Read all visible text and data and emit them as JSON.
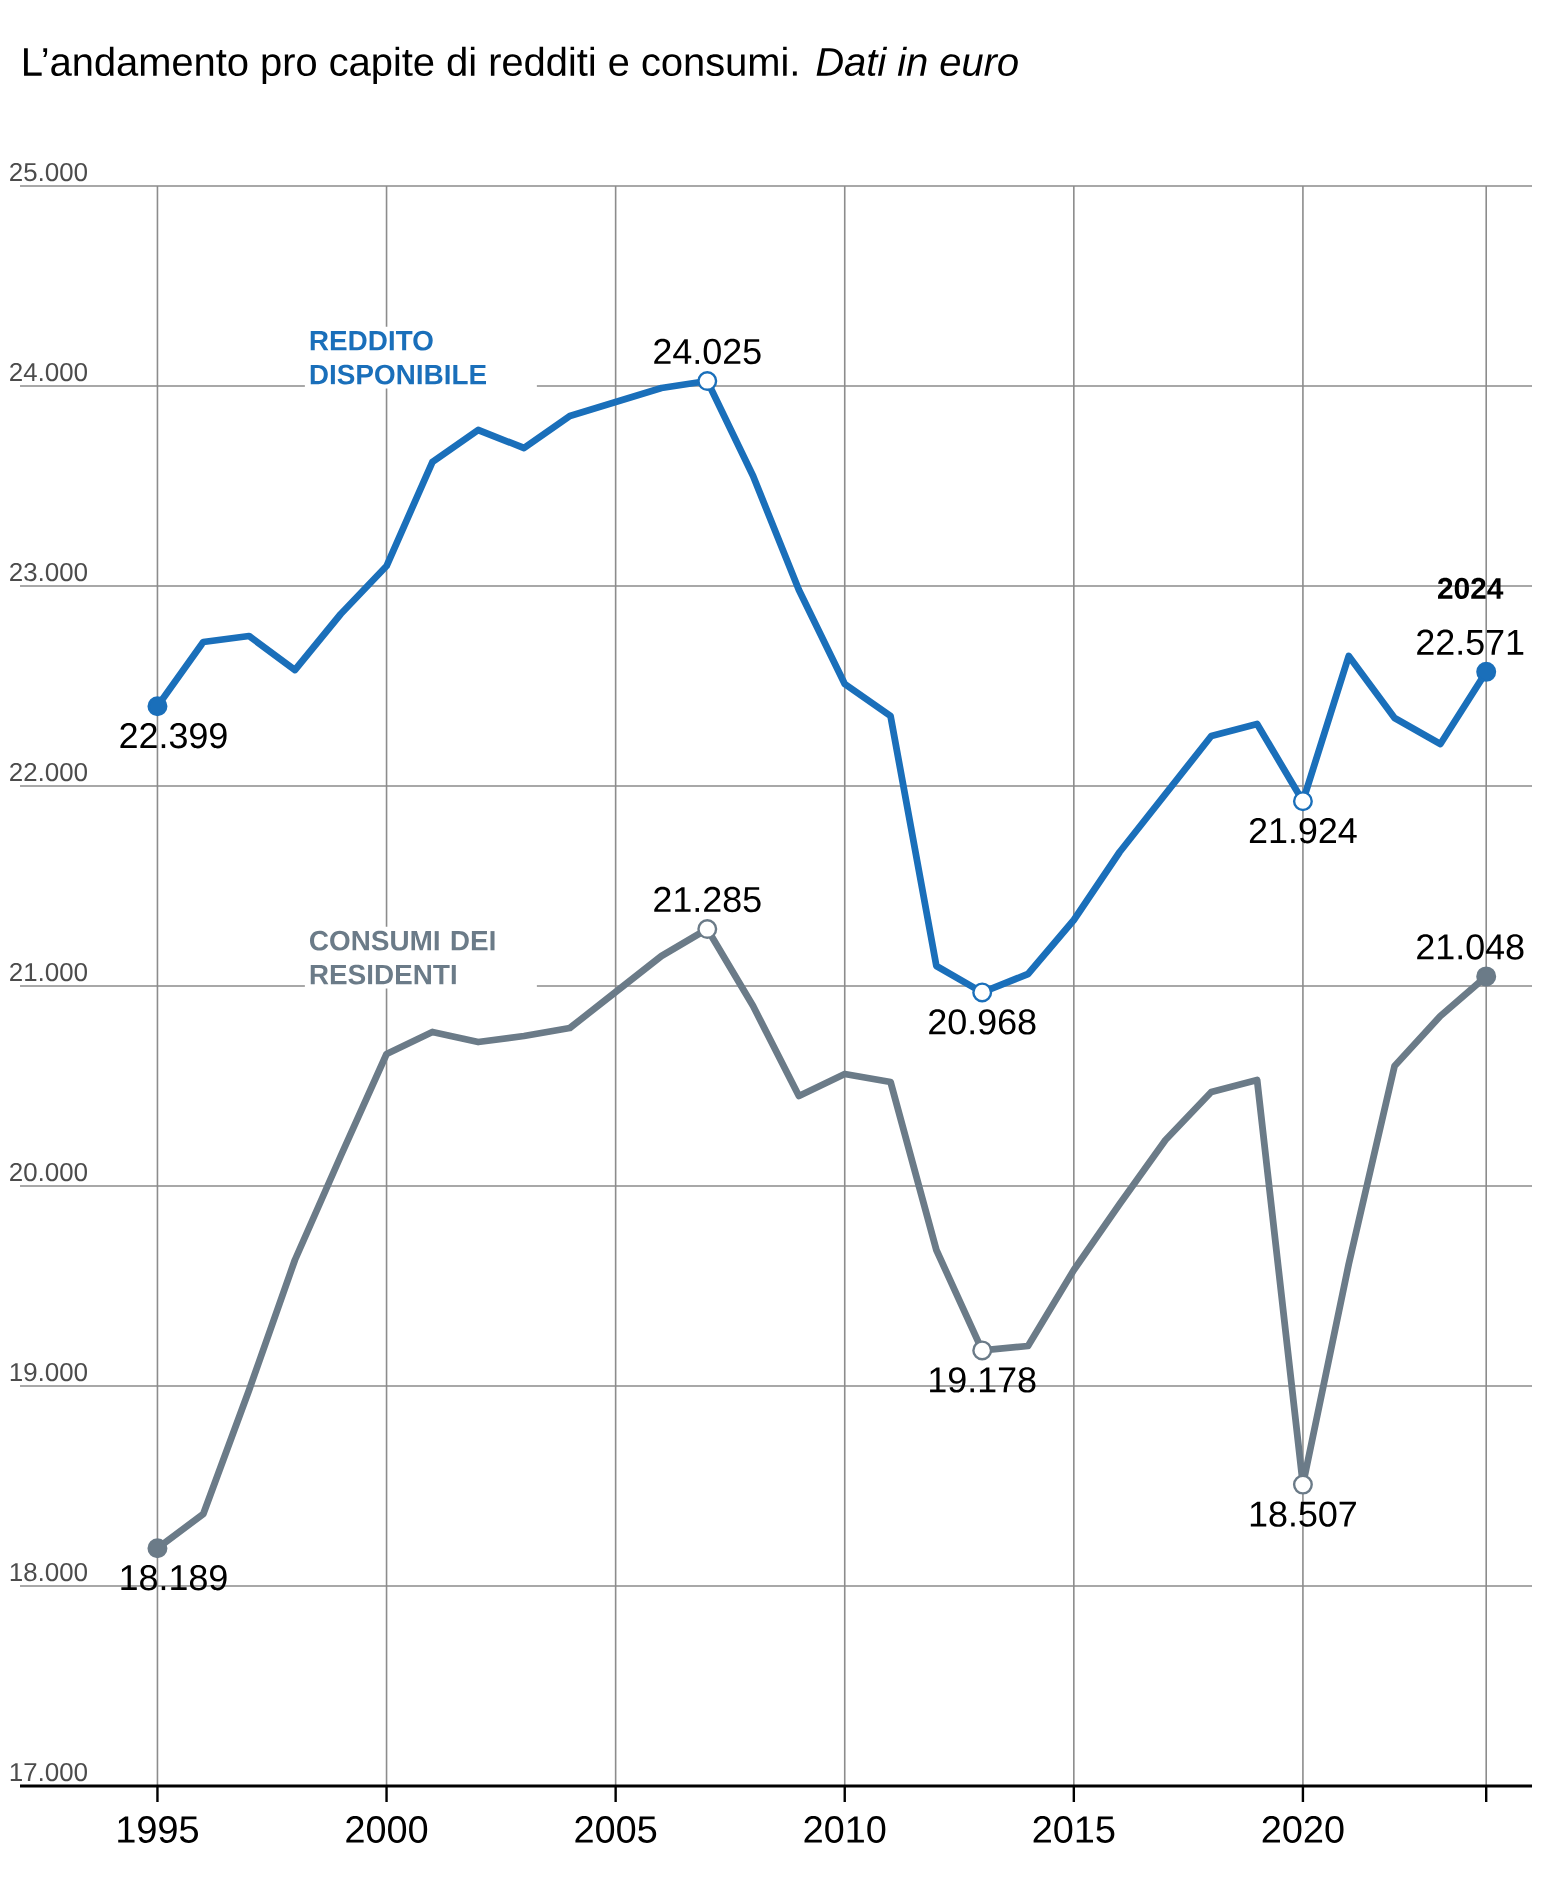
{
  "chart_data": {
    "type": "line",
    "title": "L’andamento pro capite di redditi e consumi. *Dati in euro*",
    "x": [
      1995,
      1996,
      1997,
      1998,
      1999,
      2000,
      2001,
      2002,
      2003,
      2004,
      2005,
      2006,
      2007,
      2008,
      2009,
      2010,
      2011,
      2012,
      2013,
      2014,
      2015,
      2016,
      2017,
      2018,
      2019,
      2020,
      2021,
      2022,
      2023,
      2024
    ],
    "series": [
      {
        "name": "REDDITO DISPONIBILE",
        "color": "#1a6fba",
        "values": [
          22399,
          22720,
          22750,
          22580,
          22860,
          23100,
          23620,
          23780,
          23690,
          23850,
          23920,
          23990,
          24025,
          23550,
          22980,
          22510,
          22350,
          21100,
          20968,
          21060,
          21330,
          21670,
          21960,
          22250,
          22310,
          21924,
          22650,
          22340,
          22210,
          22571
        ],
        "value_labels": [
          "22.399",
          null,
          null,
          null,
          null,
          null,
          null,
          null,
          null,
          null,
          null,
          null,
          "24.025",
          null,
          null,
          null,
          null,
          null,
          "20.968",
          null,
          null,
          null,
          null,
          null,
          null,
          "21.924",
          null,
          null,
          null,
          "22.571"
        ]
      },
      {
        "name": "CONSUMI DEI RESIDENTI",
        "color": "#6b7b88",
        "values": [
          18189,
          18360,
          18980,
          19630,
          20150,
          20660,
          20770,
          20720,
          20750,
          20790,
          20970,
          21150,
          21285,
          20900,
          20450,
          20560,
          20520,
          19680,
          19178,
          19200,
          19580,
          19910,
          20230,
          20470,
          20530,
          18507,
          19610,
          20600,
          20850,
          21048
        ],
        "value_labels": [
          "18.189",
          null,
          null,
          null,
          null,
          null,
          null,
          null,
          null,
          null,
          null,
          null,
          "21.285",
          null,
          null,
          null,
          null,
          null,
          "19.178",
          null,
          null,
          null,
          null,
          null,
          null,
          "18.507",
          null,
          null,
          null,
          "21.048"
        ]
      }
    ],
    "annotations": [
      {
        "text": "2024",
        "x": 2024,
        "y": 22571
      }
    ],
    "xlim": [
      1992,
      2025
    ],
    "ylim": [
      17000,
      25000
    ],
    "xticks": [
      1995,
      2000,
      2005,
      2010,
      2015,
      2020,
      {
        "value": 2024,
        "label": null
      }
    ],
    "yticks": [
      {
        "value": 17000,
        "label": "17.000"
      },
      {
        "value": 18000,
        "label": "18.000"
      },
      {
        "value": 19000,
        "label": "19.000"
      },
      {
        "value": 20000,
        "label": "20.000"
      },
      {
        "value": 21000,
        "label": "21.000"
      },
      {
        "value": 22000,
        "label": "22.000"
      },
      {
        "value": 23000,
        "label": "23.000"
      },
      {
        "value": 24000,
        "label": "24.000"
      },
      {
        "value": 25000,
        "label": "25.000"
      }
    ],
    "grid": true,
    "line_style": "solid"
  }
}
